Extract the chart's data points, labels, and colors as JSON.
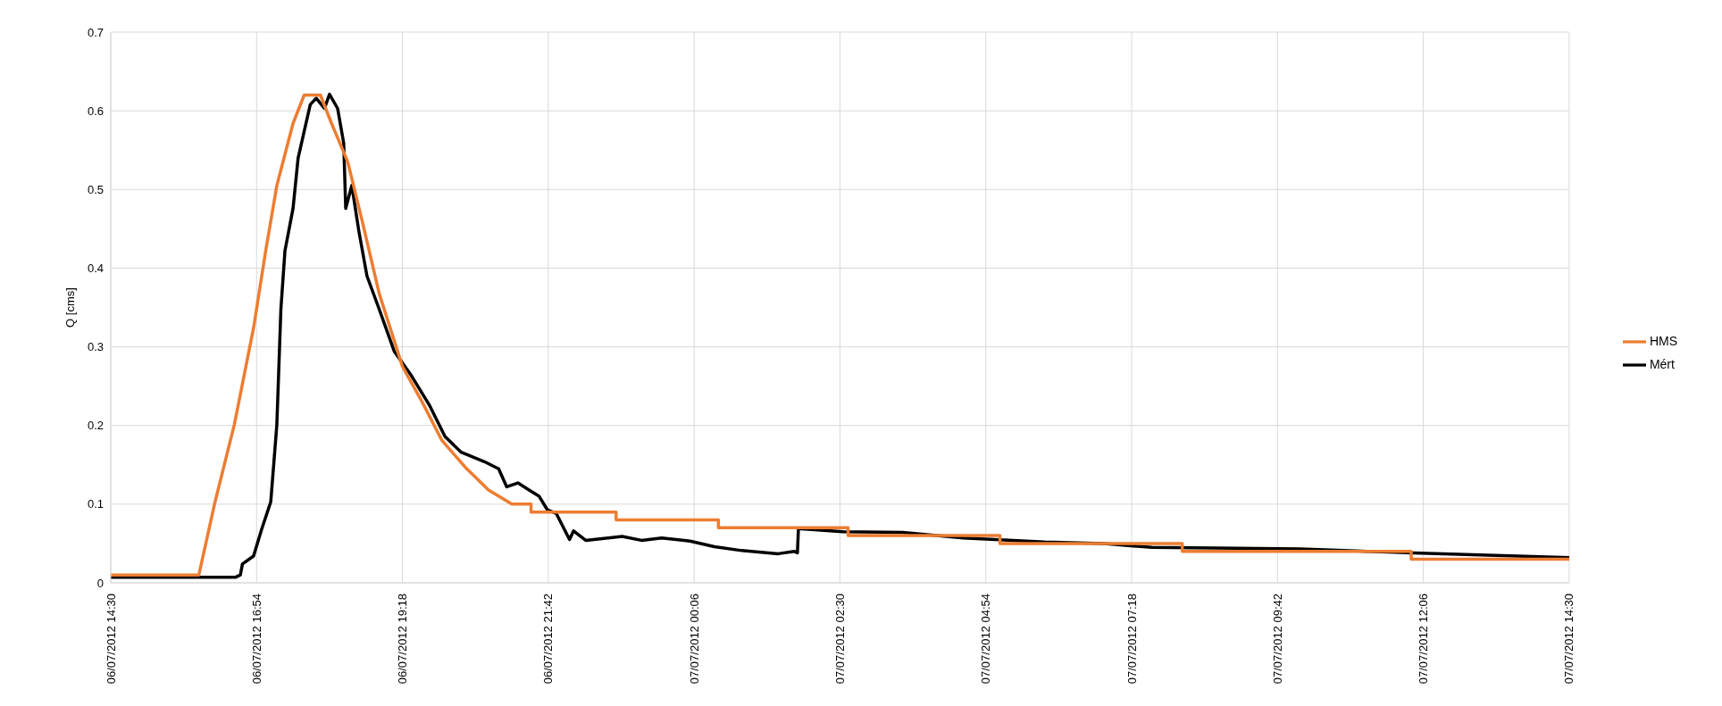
{
  "chart_data": {
    "type": "line",
    "ylabel": "Q [cms]",
    "xlim": [
      "2012-07-06T14:30",
      "2012-07-07T14:30"
    ],
    "xticks": [
      {
        "value": "2012-07-06T14:30",
        "label": "06/07/2012 14:30"
      },
      {
        "value": "2012-07-06T16:54",
        "label": "06/07/2012 16:54"
      },
      {
        "value": "2012-07-06T19:18",
        "label": "06/07/2012 19:18"
      },
      {
        "value": "2012-07-06T21:42",
        "label": "06/07/2012 21:42"
      },
      {
        "value": "2012-07-07T00:06",
        "label": "07/07/2012 00:06"
      },
      {
        "value": "2012-07-07T02:30",
        "label": "07/07/2012 02:30"
      },
      {
        "value": "2012-07-07T04:54",
        "label": "07/07/2012 04:54"
      },
      {
        "value": "2012-07-07T07:18",
        "label": "07/07/2012 07:18"
      },
      {
        "value": "2012-07-07T09:42",
        "label": "07/07/2012 09:42"
      },
      {
        "value": "2012-07-07T12:06",
        "label": "07/07/2012 12:06"
      },
      {
        "value": "2012-07-07T14:30",
        "label": "07/07/2012 14:30"
      }
    ],
    "ylim": [
      0,
      0.7
    ],
    "yticks": [
      0,
      0.1,
      0.2,
      0.3,
      0.4,
      0.5,
      0.6,
      0.7
    ],
    "grid": true,
    "legend": "right",
    "marker": "none",
    "line_style": "solid",
    "series": [
      {
        "name": "Mért",
        "color": "#000000",
        "x": [
          "2012-07-06T14:30",
          "2012-07-06T16:33",
          "2012-07-06T16:38",
          "2012-07-06T16:40",
          "2012-07-06T16:51",
          "2012-07-06T16:59",
          "2012-07-06T17:08",
          "2012-07-06T17:14",
          "2012-07-06T17:18",
          "2012-07-06T17:22",
          "2012-07-06T17:30",
          "2012-07-06T17:35",
          "2012-07-06T17:41",
          "2012-07-06T17:47",
          "2012-07-06T17:53",
          "2012-07-06T18:01",
          "2012-07-06T18:06",
          "2012-07-06T18:14",
          "2012-07-06T18:20",
          "2012-07-06T18:22",
          "2012-07-06T18:28",
          "2012-07-06T18:35",
          "2012-07-06T18:43",
          "2012-07-06T18:55",
          "2012-07-06T19:10",
          "2012-07-06T19:26",
          "2012-07-06T19:45",
          "2012-07-06T20:00",
          "2012-07-06T20:16",
          "2012-07-06T20:39",
          "2012-07-06T20:53",
          "2012-07-06T21:01",
          "2012-07-06T21:12",
          "2012-07-06T21:23",
          "2012-07-06T21:33",
          "2012-07-06T21:41",
          "2012-07-06T21:50",
          "2012-07-06T22:03",
          "2012-07-06T22:07",
          "2012-07-06T22:19",
          "2012-07-06T22:55",
          "2012-07-06T23:14",
          "2012-07-06T23:34",
          "2012-07-07T00:02",
          "2012-07-07T00:26",
          "2012-07-07T00:53",
          "2012-07-07T01:29",
          "2012-07-07T01:45",
          "2012-07-07T01:48",
          "2012-07-07T01:49",
          "2012-07-07T02:33",
          "2012-07-07T03:32",
          "2012-07-07T04:32",
          "2012-07-07T05:52",
          "2012-07-07T06:51",
          "2012-07-07T07:38",
          "2012-07-07T10:04",
          "2012-07-07T11:56",
          "2012-07-07T14:30"
        ],
        "values": [
          0.007,
          0.007,
          0.01,
          0.024,
          0.034,
          0.068,
          0.103,
          0.201,
          0.348,
          0.422,
          0.476,
          0.54,
          0.574,
          0.608,
          0.616,
          0.603,
          0.621,
          0.603,
          0.559,
          0.476,
          0.505,
          0.447,
          0.39,
          0.348,
          0.294,
          0.265,
          0.225,
          0.186,
          0.166,
          0.154,
          0.145,
          0.122,
          0.127,
          0.118,
          0.11,
          0.093,
          0.088,
          0.055,
          0.066,
          0.054,
          0.059,
          0.054,
          0.057,
          0.053,
          0.046,
          0.041,
          0.037,
          0.04,
          0.038,
          0.069,
          0.065,
          0.064,
          0.057,
          0.052,
          0.05,
          0.045,
          0.043,
          0.038,
          0.032
        ]
      },
      {
        "name": "HMS",
        "color": "#ed7d31",
        "x": [
          "2012-07-06T14:30",
          "2012-07-06T15:57",
          "2012-07-06T16:13",
          "2012-07-06T16:32",
          "2012-07-06T16:51",
          "2012-07-06T17:03",
          "2012-07-06T17:14",
          "2012-07-06T17:30",
          "2012-07-06T17:41",
          "2012-07-06T17:57",
          "2012-07-06T18:08",
          "2012-07-06T18:24",
          "2012-07-06T18:39",
          "2012-07-06T18:55",
          "2012-07-06T19:18",
          "2012-07-06T19:37",
          "2012-07-06T19:57",
          "2012-07-06T20:20",
          "2012-07-06T20:43",
          "2012-07-06T21:06",
          "2012-07-06T21:25",
          "2012-07-06T21:25",
          "2012-07-06T22:49",
          "2012-07-06T22:49",
          "2012-07-07T00:30",
          "2012-07-07T00:30",
          "2012-07-07T02:38",
          "2012-07-07T02:38",
          "2012-07-07T05:08",
          "2012-07-07T05:08",
          "2012-07-07T08:08",
          "2012-07-07T08:08",
          "2012-07-07T11:54",
          "2012-07-07T11:54",
          "2012-07-07T14:30"
        ],
        "values": [
          0.01,
          0.01,
          0.103,
          0.201,
          0.324,
          0.422,
          0.505,
          0.584,
          0.62,
          0.62,
          0.584,
          0.535,
          0.456,
          0.368,
          0.275,
          0.231,
          0.181,
          0.147,
          0.118,
          0.1,
          0.1,
          0.09,
          0.09,
          0.08,
          0.08,
          0.07,
          0.07,
          0.06,
          0.06,
          0.05,
          0.05,
          0.04,
          0.04,
          0.03,
          0.03
        ]
      }
    ]
  }
}
